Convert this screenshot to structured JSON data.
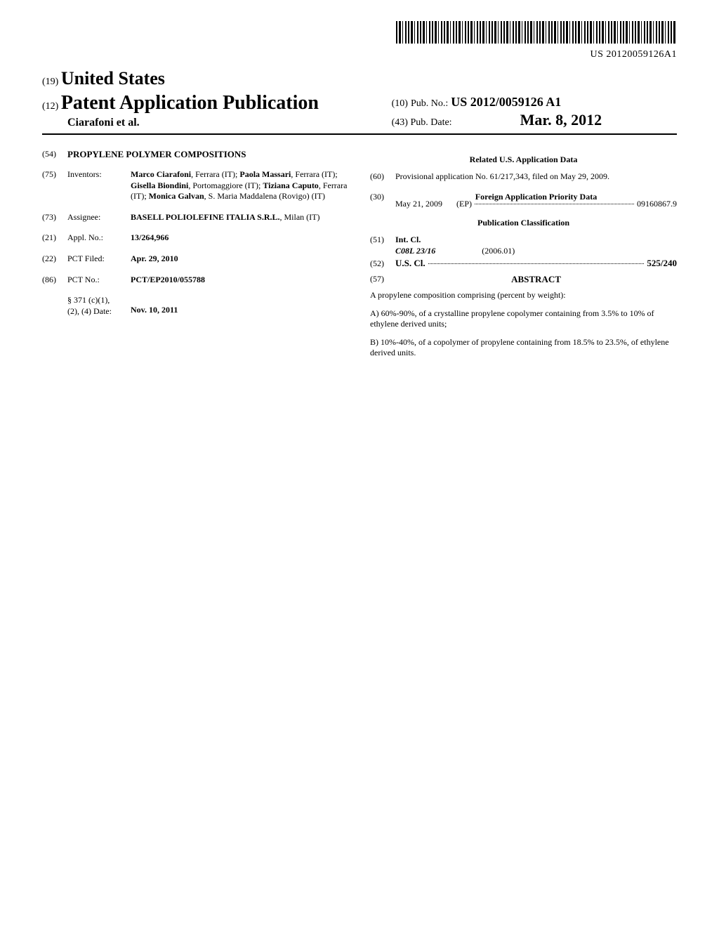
{
  "barcode_number": "US 20120059126A1",
  "header": {
    "code19": "(19)",
    "country": "United States",
    "code12": "(12)",
    "pub_type": "Patent Application Publication",
    "authors_line": "Ciarafoni et al.",
    "code10": "(10)",
    "pubno_label": "Pub. No.:",
    "pubno_value": "US 2012/0059126 A1",
    "code43": "(43)",
    "pubdate_label": "Pub. Date:",
    "pubdate_value": "Mar. 8, 2012"
  },
  "left": {
    "code54": "(54)",
    "title": "PROPYLENE POLYMER COMPOSITIONS",
    "code75": "(75)",
    "inventors_label": "Inventors:",
    "inventors_html": "<b>Marco Ciarafoni</b>, Ferrara (IT); <b>Paola Massari</b>, Ferrara (IT); <b>Gisella Biondini</b>, Portomaggiore (IT); <b>Tiziana Caputo</b>, Ferrara (IT); <b>Monica Galvan</b>, S. Maria Maddalena (Rovigo) (IT)",
    "code73": "(73)",
    "assignee_label": "Assignee:",
    "assignee_html": "<b>BASELL POLIOLEFINE ITALIA S.R.L.</b>, Milan (IT)",
    "code21": "(21)",
    "applno_label": "Appl. No.:",
    "applno_value": "13/264,966",
    "code22": "(22)",
    "pctfiled_label": "PCT Filed:",
    "pctfiled_value": "Apr. 29, 2010",
    "code86": "(86)",
    "pctno_label": "PCT No.:",
    "pctno_value": "PCT/EP2010/055788",
    "s371_label": "§ 371 (c)(1),\n(2), (4) Date:",
    "s371_value": "Nov. 10, 2011"
  },
  "right": {
    "related_heading": "Related U.S. Application Data",
    "code60": "(60)",
    "provisional_text": "Provisional application No. 61/217,343, filed on May 29, 2009.",
    "code30": "(30)",
    "foreign_heading": "Foreign Application Priority Data",
    "foreign_date": "May 21, 2009",
    "foreign_cc": "(EP)",
    "foreign_num": "09160867.9",
    "pubclass_heading": "Publication Classification",
    "code51": "(51)",
    "intcl_label": "Int. Cl.",
    "intcl_class": "C08L 23/16",
    "intcl_date": "(2006.01)",
    "code52": "(52)",
    "uscl_label": "U.S. Cl.",
    "uscl_value": "525/240",
    "code57": "(57)",
    "abstract_label": "ABSTRACT",
    "abs_p1": "A propylene composition comprising (percent by weight):",
    "abs_p2": "A) 60%-90%, of a crystalline propylene copolymer containing from 3.5% to 10% of ethylene derived units;",
    "abs_p3": "B) 10%-40%, of a copolymer of propylene containing from 18.5% to 23.5%, of ethylene derived units."
  }
}
